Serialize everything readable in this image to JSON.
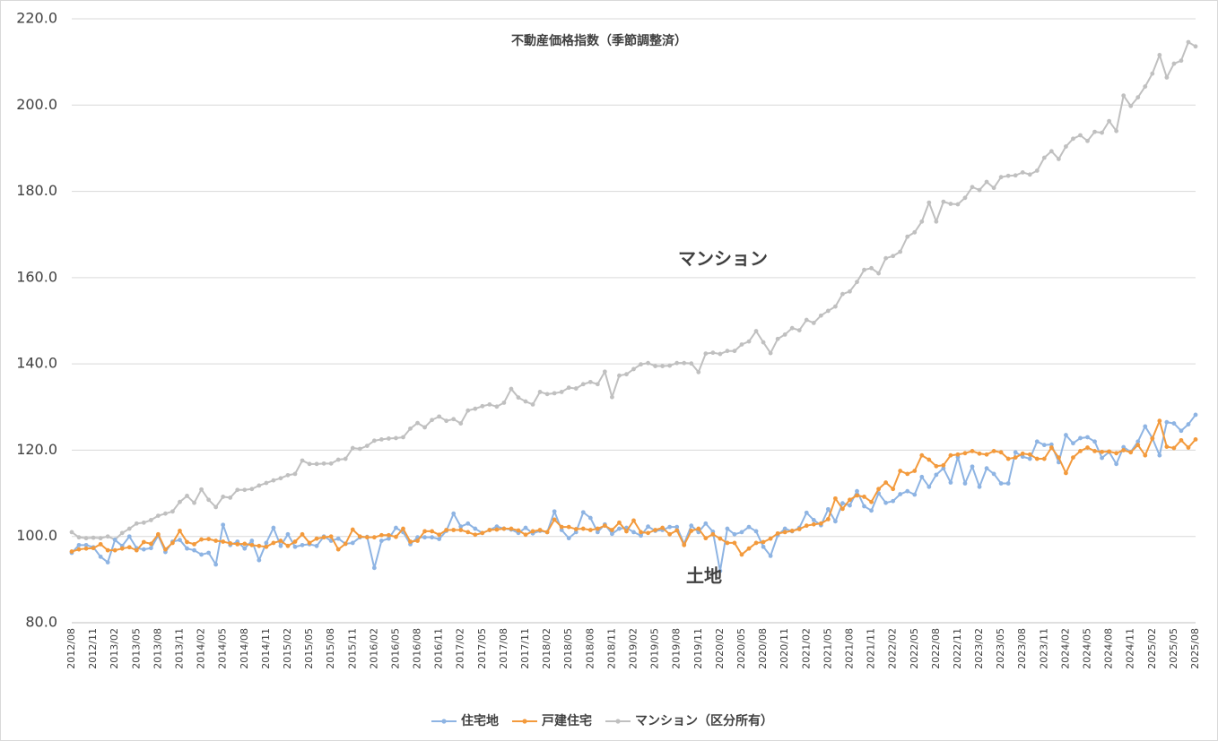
{
  "chart_data": {
    "type": "line",
    "title": "不動産価格指数（季節調整済）",
    "annotations": [
      "マンション",
      "土地"
    ],
    "categories": [
      "2012/08",
      null,
      null,
      "2012/11",
      null,
      null,
      "2013/02",
      null,
      null,
      "2013/05",
      null,
      null,
      "2013/08",
      null,
      null,
      "2013/11",
      null,
      null,
      "2014/02",
      null,
      null,
      "2014/05",
      null,
      null,
      "2014/08",
      null,
      null,
      "2014/11",
      null,
      null,
      "2015/02",
      null,
      null,
      "2015/05",
      null,
      null,
      "2015/08",
      null,
      null,
      "2015/11",
      null,
      null,
      "2016/02",
      null,
      null,
      "2016/05",
      null,
      null,
      "2016/08",
      null,
      null,
      "2016/11",
      null,
      null,
      "2017/02",
      null,
      null,
      "2017/05",
      null,
      null,
      "2017/08",
      null,
      null,
      "2017/11",
      null,
      null,
      "2018/02",
      null,
      null,
      "2018/05",
      null,
      null,
      "2018/08",
      null,
      null,
      "2018/11",
      null,
      null,
      "2019/02",
      null,
      null,
      "2019/05",
      null,
      null,
      "2019/08",
      null,
      null,
      "2019/11",
      null,
      null,
      "2020/02",
      null,
      null,
      "2020/05",
      null,
      null,
      "2020/08",
      null,
      null,
      "2020/11",
      null,
      null,
      "2021/02",
      null,
      null,
      "2021/05",
      null,
      null,
      "2021/08",
      null,
      null,
      "2021/11",
      null,
      null,
      "2022/02",
      null,
      null,
      "2022/05",
      null,
      null,
      "2022/08",
      null,
      null,
      "2022/11",
      null,
      null,
      "2023/02",
      null,
      null,
      "2023/05",
      null,
      null,
      "2023/08",
      null,
      null,
      "2023/11",
      null,
      null,
      "2024/02",
      null,
      null,
      "2024/05",
      null,
      null,
      "2024/08",
      null,
      null,
      "2024/11",
      null,
      null,
      "2025/02",
      null,
      null,
      "2025/05",
      null,
      null,
      "2025/08"
    ],
    "series": [
      {
        "name": "住宅地",
        "color": "#8eb4e3",
        "values": [
          96.2,
          98,
          98,
          97.5,
          95.3,
          94,
          99.2,
          97.8,
          100,
          97.3,
          97,
          97.3,
          100.2,
          96.4,
          98.8,
          99.2,
          97.2,
          96.8,
          95.8,
          96.2,
          93.5,
          102.7,
          98,
          98.8,
          97.2,
          99,
          94.5,
          98.5,
          102,
          97.8,
          100.5,
          97.6,
          98,
          98.2,
          97.8,
          100,
          99,
          99.5,
          98.3,
          98.5,
          99.8,
          99.9,
          92.7,
          99,
          99.5,
          102,
          101,
          98.2,
          99.8,
          99.8,
          99.8,
          99.4,
          101.3,
          105.3,
          102.3,
          103,
          101.8,
          100.8,
          101.5,
          102.3,
          101.8,
          101.6,
          100.8,
          102,
          100.7,
          101.3,
          101,
          105.8,
          101.5,
          99.6,
          101,
          105.6,
          104.3,
          101,
          102.8,
          100.6,
          101.8,
          102,
          101,
          100.2,
          102.3,
          101.3,
          101.5,
          102.2,
          102.2,
          98.3,
          102.5,
          101,
          103,
          101.1,
          92,
          101.8,
          100.5,
          101,
          102.2,
          101.2,
          97.6,
          95.5,
          100.3,
          101.8,
          101.2,
          102,
          105.5,
          103.8,
          102.6,
          106.3,
          103.5,
          107.7,
          107.2,
          110.5,
          107,
          106,
          110,
          107.8,
          108.2,
          109.8,
          110.5,
          109.7,
          113.8,
          111.5,
          114.3,
          115.8,
          112.5,
          118.4,
          112.3,
          116.2,
          111.5,
          115.8,
          114.5,
          112.3,
          112.3,
          119.5,
          118.5,
          118,
          122,
          121.2,
          121.3,
          117.2,
          123.5,
          121.6,
          122.8,
          123,
          122,
          118.2,
          119.6,
          116.8,
          120.7,
          119.6,
          122,
          125.5,
          122.8,
          118.8,
          126.5,
          126.2,
          124.5,
          126,
          128.2
        ]
      },
      {
        "name": "戸建住宅",
        "color": "#f39a3c",
        "values": [
          96.5,
          97,
          97.2,
          97.3,
          98.2,
          96.8,
          96.8,
          97.2,
          97.5,
          96.8,
          98.7,
          98.3,
          100.5,
          97,
          98.5,
          101.3,
          98.7,
          98.2,
          99.3,
          99.4,
          99,
          98.8,
          98.4,
          98.2,
          98.3,
          98,
          97.8,
          97.6,
          98.5,
          99,
          97.8,
          98.8,
          100.5,
          98.5,
          99.5,
          99.8,
          100,
          97,
          98.3,
          101.6,
          100,
          99.8,
          99.8,
          100.3,
          100.3,
          99.9,
          101.8,
          98.8,
          99,
          101.2,
          101.2,
          100.4,
          101.5,
          101.5,
          101.5,
          101,
          100.4,
          100.8,
          101.5,
          101.6,
          101.8,
          101.8,
          101.4,
          100.4,
          101.2,
          101.5,
          101,
          103.9,
          102.2,
          102.2,
          101.7,
          101.8,
          101.5,
          101.8,
          102.5,
          101.5,
          103.2,
          101.2,
          103.7,
          101,
          100.8,
          101.5,
          102,
          100.5,
          101.4,
          98,
          101.3,
          101.8,
          99.6,
          100.5,
          99.5,
          98.5,
          98.5,
          95.8,
          97.2,
          98.5,
          98.7,
          99.5,
          100.7,
          101,
          101.3,
          101.7,
          102.5,
          102.8,
          103,
          104,
          108.8,
          106.4,
          108.5,
          109.5,
          109.2,
          108,
          111,
          112.5,
          111,
          115.2,
          114.5,
          115.2,
          118.8,
          117.8,
          116.3,
          116.5,
          118.8,
          119,
          119.3,
          119.8,
          119.2,
          119,
          119.8,
          119.5,
          118,
          118.3,
          119.2,
          119,
          118,
          118,
          120.6,
          118.3,
          114.7,
          118.3,
          119.8,
          120.6,
          119.8,
          119.6,
          119.7,
          119.3,
          120,
          119.5,
          121.2,
          118.8,
          122.7,
          126.8,
          120.8,
          120.5,
          122.3,
          120.6,
          122.5
        ]
      },
      {
        "name": "マンション（区分所有）",
        "color": "#c0c0c0",
        "values": [
          101,
          99.8,
          99.6,
          99.7,
          99.6,
          100,
          99.3,
          100.8,
          101.8,
          103,
          103.2,
          103.8,
          104.8,
          105.3,
          105.8,
          108,
          109.4,
          107.8,
          110.9,
          108.5,
          106.8,
          109.2,
          109,
          110.8,
          110.8,
          111,
          111.8,
          112.4,
          113,
          113.5,
          114.2,
          114.5,
          117.6,
          116.8,
          116.8,
          116.9,
          116.9,
          117.8,
          118,
          120.5,
          120.3,
          121,
          122.2,
          122.5,
          122.7,
          122.8,
          123,
          125,
          126.3,
          125.3,
          127,
          127.8,
          126.8,
          127.2,
          126.2,
          129.2,
          129.6,
          130.2,
          130.6,
          130.1,
          131,
          134.2,
          132.2,
          131.3,
          130.6,
          133.5,
          133,
          133.2,
          133.5,
          134.5,
          134.3,
          135.3,
          135.8,
          135.3,
          138.2,
          132.3,
          137.3,
          137.6,
          138.8,
          139.9,
          140.2,
          139.5,
          139.5,
          139.6,
          140.2,
          140.2,
          140.1,
          138.1,
          142.4,
          142.6,
          142.3,
          143,
          143,
          144.5,
          145.2,
          147.6,
          145,
          142.5,
          145.8,
          146.8,
          148.3,
          147.8,
          150.2,
          149.5,
          151.2,
          152.3,
          153.3,
          156.2,
          156.8,
          159,
          161.8,
          162.2,
          161,
          164.5,
          165,
          166,
          169.5,
          170.5,
          173,
          177.4,
          173,
          177.6,
          177.1,
          177,
          178.5,
          181,
          180.3,
          182.2,
          180.8,
          183.3,
          183.6,
          183.7,
          184.4,
          183.9,
          184.8,
          187.8,
          189.3,
          187.5,
          190.4,
          192.2,
          193,
          191.7,
          193.8,
          193.6,
          196.3,
          194,
          202.2,
          199.8,
          201.8,
          204.3,
          207.3,
          211.6,
          206.4,
          209.6,
          210.3,
          214.6,
          213.6
        ]
      }
    ],
    "ylim": [
      80,
      220
    ],
    "yticks": [
      {
        "value": 80,
        "label": "80.0"
      },
      {
        "value": 100,
        "label": "100.0"
      },
      {
        "value": 120,
        "label": "120.0"
      },
      {
        "value": 140,
        "label": "140.0"
      },
      {
        "value": 160,
        "label": "160.0"
      },
      {
        "value": 180,
        "label": "180.0"
      },
      {
        "value": 200,
        "label": "200.0"
      },
      {
        "value": 220,
        "label": "220.0"
      }
    ],
    "grid": true,
    "legend": "bottom"
  }
}
